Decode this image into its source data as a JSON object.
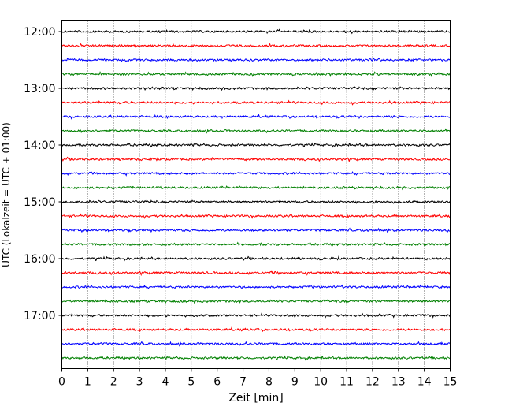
{
  "chart_data": {
    "type": "line",
    "title": "",
    "xlabel": "Zeit  [min]",
    "ylabel": "UTC (Lokalzeit = UTC + 01:00)",
    "xlim": [
      0,
      15
    ],
    "x_ticks": [
      "0",
      "1",
      "2",
      "3",
      "4",
      "5",
      "6",
      "7",
      "8",
      "9",
      "10",
      "11",
      "12",
      "13",
      "14",
      "15"
    ],
    "y_ticks": [
      {
        "label": "12:00",
        "trace": 0
      },
      {
        "label": "13:00",
        "trace": 4
      },
      {
        "label": "14:00",
        "trace": 8
      },
      {
        "label": "15:00",
        "trace": 12
      },
      {
        "label": "16:00",
        "trace": 16
      },
      {
        "label": "17:00",
        "trace": 20
      }
    ],
    "grid": "vertical dotted at each minute",
    "trace_interval_min": 15,
    "traces": [
      {
        "start": "12:00",
        "color": "#000000"
      },
      {
        "start": "12:15",
        "color": "#ff0000"
      },
      {
        "start": "12:30",
        "color": "#0000ff"
      },
      {
        "start": "12:45",
        "color": "#008000"
      },
      {
        "start": "13:00",
        "color": "#000000"
      },
      {
        "start": "13:15",
        "color": "#ff0000"
      },
      {
        "start": "13:30",
        "color": "#0000ff"
      },
      {
        "start": "13:45",
        "color": "#008000"
      },
      {
        "start": "14:00",
        "color": "#000000"
      },
      {
        "start": "14:15",
        "color": "#ff0000"
      },
      {
        "start": "14:30",
        "color": "#0000ff"
      },
      {
        "start": "14:45",
        "color": "#008000"
      },
      {
        "start": "15:00",
        "color": "#000000"
      },
      {
        "start": "15:15",
        "color": "#ff0000"
      },
      {
        "start": "15:30",
        "color": "#0000ff"
      },
      {
        "start": "15:45",
        "color": "#008000"
      },
      {
        "start": "16:00",
        "color": "#000000"
      },
      {
        "start": "16:15",
        "color": "#ff0000"
      },
      {
        "start": "16:30",
        "color": "#0000ff"
      },
      {
        "start": "16:45",
        "color": "#008000"
      },
      {
        "start": "17:00",
        "color": "#000000"
      },
      {
        "start": "17:15",
        "color": "#ff0000"
      },
      {
        "start": "17:30",
        "color": "#0000ff"
      },
      {
        "start": "17:45",
        "color": "#008000"
      }
    ]
  }
}
